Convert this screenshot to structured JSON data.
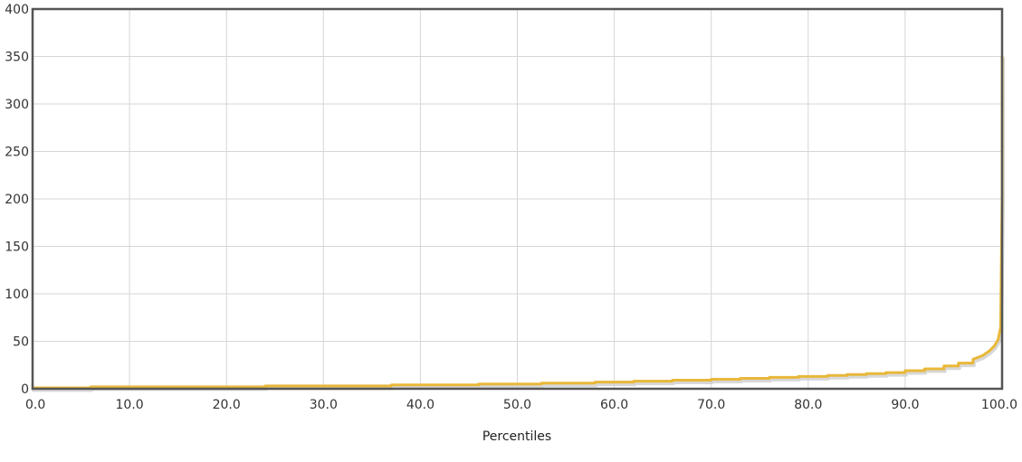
{
  "chart_data": {
    "type": "line",
    "title": "",
    "xlabel": "Percentiles",
    "ylabel": "",
    "xlim": [
      0,
      100
    ],
    "ylim": [
      0,
      400
    ],
    "x_ticks": [
      "0.0",
      "10.0",
      "20.0",
      "30.0",
      "40.0",
      "50.0",
      "60.0",
      "70.0",
      "80.0",
      "90.0",
      "100.0"
    ],
    "y_ticks": [
      "0",
      "50",
      "100",
      "150",
      "200",
      "250",
      "300",
      "350",
      "400"
    ],
    "grid": true,
    "legend": "none",
    "series": [
      {
        "color": "#e8b83a",
        "shadow_color": "#c8c8c8",
        "x": [
          0,
          6,
          6,
          24,
          24,
          37,
          37,
          46,
          46,
          52.5,
          52.5,
          58,
          58,
          62,
          62,
          66,
          66,
          70,
          70,
          73,
          73,
          76,
          76,
          79,
          79,
          82,
          82,
          84,
          84,
          86,
          86,
          88,
          88,
          90,
          90,
          92,
          92,
          94,
          94,
          95.5,
          95.5,
          97,
          97,
          98,
          98.7,
          99.2,
          99.6,
          99.85,
          100,
          100
        ],
        "y": [
          1,
          1,
          2,
          2,
          3,
          3,
          4,
          4,
          5,
          5,
          6,
          6,
          7,
          7,
          8,
          8,
          9,
          9,
          10,
          10,
          11,
          11,
          12,
          12,
          13,
          13,
          14,
          14,
          15,
          15,
          16,
          16,
          17,
          17,
          19,
          19,
          21,
          21,
          24,
          24,
          27,
          27,
          31,
          35,
          40,
          45,
          52,
          65,
          200,
          350
        ]
      }
    ]
  }
}
